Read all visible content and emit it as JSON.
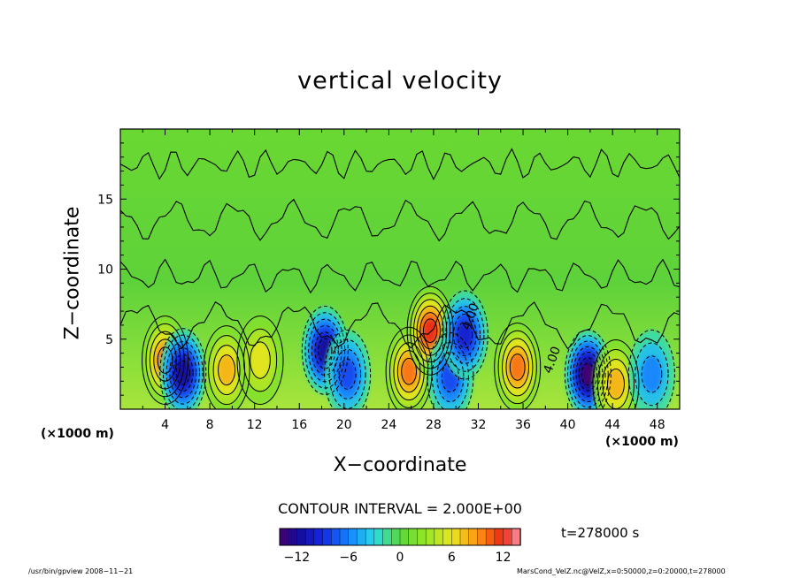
{
  "chart_data": {
    "type": "heatmap",
    "title": "vertical velocity",
    "xlabel": "X−coordinate",
    "ylabel": "Z−coordinate",
    "x_unit": "(×1000 m)",
    "z_unit": "(×1000 m)",
    "xlim": [
      0,
      50
    ],
    "ylim": [
      0,
      20
    ],
    "x_ticks": [
      4,
      8,
      12,
      16,
      20,
      24,
      28,
      32,
      36,
      40,
      44,
      48
    ],
    "y_ticks": [
      5,
      10,
      15
    ],
    "contour_interval": "CONTOUR INTERVAL = 2.000E+00",
    "contour_labels": [
      {
        "text": "4.00",
        "x": 31.2,
        "z": 5.6
      },
      {
        "text": "4.00",
        "x": 38.5,
        "z": 2.5
      }
    ],
    "colorbar": {
      "range": [
        -14,
        14
      ],
      "ticks": [
        -12,
        -6,
        0,
        6,
        12
      ],
      "tick_labels": [
        "−12",
        "−6",
        "0",
        "6",
        "12"
      ],
      "colormap": "blue-cyan-green-yellow-red"
    },
    "time_label": "t=278000 s",
    "cells": [
      {
        "x": 4.0,
        "z": 3.5,
        "value": 10
      },
      {
        "x": 5.6,
        "z": 2.6,
        "value": -12
      },
      {
        "x": 9.5,
        "z": 2.8,
        "value": 8
      },
      {
        "x": 12.5,
        "z": 3.5,
        "value": 6
      },
      {
        "x": 18.3,
        "z": 4.2,
        "value": -12
      },
      {
        "x": 20.3,
        "z": 2.5,
        "value": -8
      },
      {
        "x": 25.8,
        "z": 2.7,
        "value": 10
      },
      {
        "x": 27.7,
        "z": 5.6,
        "value": 12
      },
      {
        "x": 29.5,
        "z": 2.3,
        "value": -8
      },
      {
        "x": 30.8,
        "z": 5.3,
        "value": -10
      },
      {
        "x": 35.5,
        "z": 3.0,
        "value": 10
      },
      {
        "x": 41.8,
        "z": 2.5,
        "value": -14
      },
      {
        "x": 44.3,
        "z": 1.8,
        "value": 8
      },
      {
        "x": 47.5,
        "z": 2.5,
        "value": -6
      }
    ]
  },
  "footer": {
    "left": "/usr/bin/gpview   2008−11−21",
    "right": "MarsCond_VelZ.nc@VelZ,x=0:50000,z=0:20000,t=278000"
  }
}
